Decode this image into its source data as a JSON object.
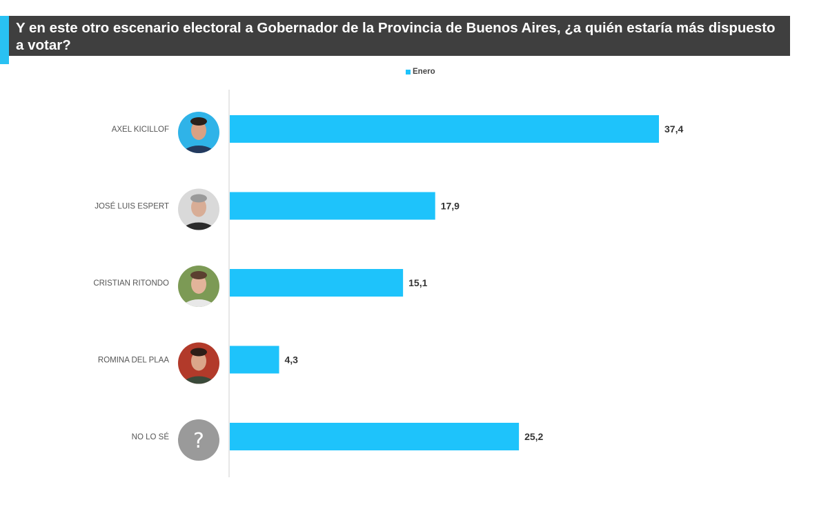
{
  "title": "Y en este otro escenario electoral a Gobernador de la Provincia de Buenos Aires, ¿a quién estaría más dispuesto a votar?",
  "legend": {
    "label": "Enero"
  },
  "colors": {
    "bar": "#1ec3fb",
    "title_bg": "#3f3f3f",
    "accent": "#29c1f2",
    "axis": "#cfcfcf"
  },
  "chart_data": {
    "type": "bar",
    "orientation": "horizontal",
    "categories": [
      "AXEL KICILLOF",
      "JOSÉ LUIS ESPERT",
      "CRISTIAN RITONDO",
      "ROMINA DEL PLAA",
      "NO LO SÉ"
    ],
    "series": [
      {
        "name": "Enero",
        "values": [
          37.4,
          17.9,
          15.1,
          4.3,
          25.2
        ]
      }
    ],
    "value_labels": [
      "37,4",
      "17,9",
      "15,1",
      "4,3",
      "25,2"
    ],
    "legend_position": "top-center",
    "grid": false
  },
  "avatars": [
    {
      "type": "photo-man-dark-hair-blue-bg",
      "bg": "#2fb3e8",
      "skin": "#d9a184",
      "hair": "#2a211c",
      "shirt": "#243a5e"
    },
    {
      "type": "photo-man-bald-grey-bg",
      "bg": "#d9d9d9",
      "skin": "#d8ad96",
      "hair": "#9a9a9a",
      "shirt": "#2b2b2b"
    },
    {
      "type": "photo-man-green-bg",
      "bg": "#7c9a55",
      "skin": "#e2b49a",
      "hair": "#5b4030",
      "shirt": "#e8e8e8"
    },
    {
      "type": "photo-woman-red-bg",
      "bg": "#b23a2a",
      "skin": "#dba68a",
      "hair": "#2e1d17",
      "shirt": "#3a4a3a"
    },
    {
      "type": "question-mark-icon",
      "bg": "#9a9a9a",
      "symbol": "?"
    }
  ]
}
